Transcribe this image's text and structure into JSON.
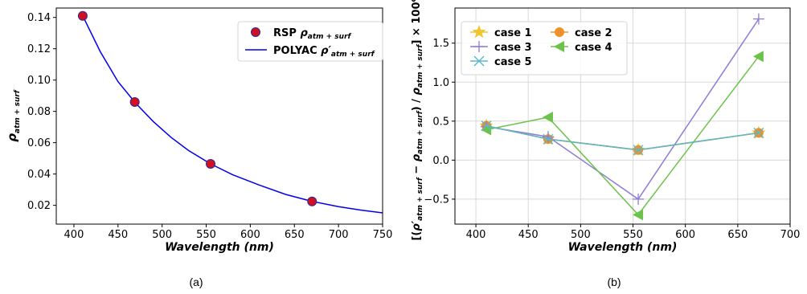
{
  "chart_data": [
    {
      "type": "line",
      "xlim": [
        380,
        750
      ],
      "ylim": [
        0.008,
        0.146
      ],
      "xticks": [
        400,
        450,
        500,
        550,
        600,
        650,
        700,
        750
      ],
      "yticks": [
        0.02,
        0.04,
        0.06,
        0.08,
        0.1,
        0.12,
        0.14
      ],
      "ytick_labels": [
        "0.02",
        "0.04",
        "0.06",
        "0.08",
        "0.10",
        "0.12",
        "0.14"
      ],
      "xlabel": "Wavelength",
      "xlabel_unit": "(nm)",
      "ylabel_main": "ρ",
      "ylabel_sub": "atm + surf",
      "grid": false,
      "legend_position": "top-right",
      "series": [
        {
          "name": "RSP",
          "name_symbol": "ρ",
          "name_sub": "atm + surf",
          "kind": "scatter",
          "color": "#d01020",
          "edge_color": "#2a2a9a",
          "x": [
            410,
            469,
            555,
            670
          ],
          "y": [
            0.141,
            0.086,
            0.0465,
            0.0225
          ]
        },
        {
          "name": "POLYAC",
          "name_symbol": "ρ′",
          "name_sub": "atm + surf",
          "kind": "line",
          "color": "#0000ee",
          "x": [
            410,
            430,
            450,
            470,
            490,
            510,
            530,
            555,
            580,
            610,
            640,
            670,
            700,
            725,
            750
          ],
          "y": [
            0.141,
            0.118,
            0.099,
            0.0852,
            0.0735,
            0.0635,
            0.055,
            0.0465,
            0.0395,
            0.033,
            0.027,
            0.0225,
            0.0192,
            0.017,
            0.0152
          ]
        }
      ],
      "caption": "(a)"
    },
    {
      "type": "line",
      "xlim": [
        380,
        700
      ],
      "ylim": [
        -0.82,
        1.95
      ],
      "xticks": [
        400,
        450,
        500,
        550,
        600,
        650,
        700
      ],
      "yticks": [
        -0.5,
        0.0,
        0.5,
        1.0,
        1.5
      ],
      "ytick_labels": [
        "−0.5",
        "0.0",
        "0.5",
        "1.0",
        "1.5"
      ],
      "xlabel": "Wavelength",
      "xlabel_unit": "(nm)",
      "ylabel_parts": [
        "[(",
        "ρ′",
        "atm + surf",
        " − ",
        "ρ",
        "atm + surf",
        ") / ",
        "ρ",
        "atm + surf",
        "] × 100%"
      ],
      "grid": true,
      "legend_position": "top-left",
      "series": [
        {
          "name": "case 1",
          "marker": "star",
          "color": "#f2c430",
          "x": [
            410,
            469,
            555,
            670
          ],
          "y": [
            0.44,
            0.27,
            0.13,
            0.35
          ]
        },
        {
          "name": "case 2",
          "marker": "circle",
          "color": "#f0902a",
          "x": [
            410,
            469,
            555,
            670
          ],
          "y": [
            0.44,
            0.27,
            0.13,
            0.35
          ]
        },
        {
          "name": "case 3",
          "marker": "plus",
          "color": "#8e7cd8",
          "x": [
            410,
            469,
            555,
            670
          ],
          "y": [
            0.43,
            0.3,
            -0.5,
            1.81
          ]
        },
        {
          "name": "case 4",
          "marker": "triangle-left",
          "color": "#6cc24a",
          "x": [
            410,
            469,
            555,
            670
          ],
          "y": [
            0.39,
            0.55,
            -0.7,
            1.33
          ]
        },
        {
          "name": "case 5",
          "marker": "x",
          "color": "#5ab8c8",
          "x": [
            410,
            469,
            555,
            670
          ],
          "y": [
            0.44,
            0.27,
            0.13,
            0.35
          ]
        }
      ],
      "caption": "(b)"
    }
  ]
}
